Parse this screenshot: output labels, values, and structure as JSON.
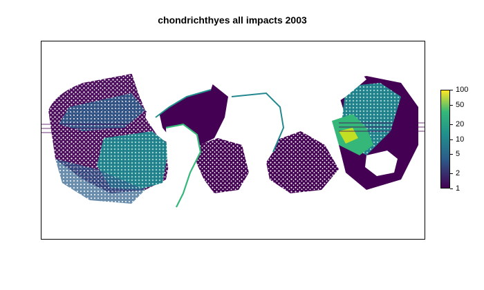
{
  "title": "chondrichthyes all impacts 2003",
  "legend": {
    "ticks": [
      {
        "value": 100,
        "label": "100"
      },
      {
        "value": 50,
        "label": "50"
      },
      {
        "value": 20,
        "label": "20"
      },
      {
        "value": 10,
        "label": "10"
      },
      {
        "value": 5,
        "label": "5"
      },
      {
        "value": 2,
        "label": "2"
      },
      {
        "value": 1,
        "label": "1"
      }
    ],
    "scale": "log",
    "range": [
      1,
      100
    ],
    "colors": {
      "low": "#440154",
      "mid_low": "#2c5d8a",
      "mid": "#21908c",
      "mid_high": "#35b779",
      "high": "#fde725"
    }
  }
}
